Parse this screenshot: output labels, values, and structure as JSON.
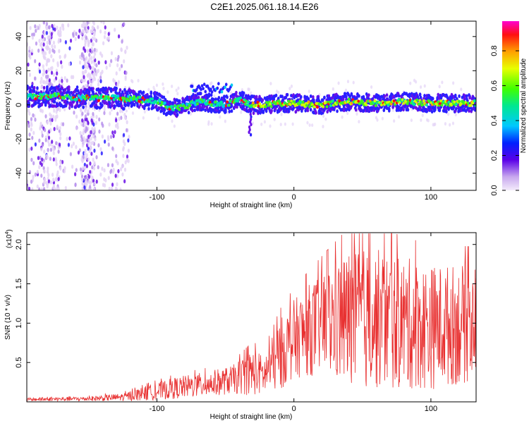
{
  "title": "C2E1.2025.061.18.14.E26",
  "chart_data": [
    {
      "type": "heatmap",
      "title": "C2E1.2025.061.18.14.E26",
      "xlabel": "Height of straight line (km)",
      "ylabel": "Frequency (Hz)",
      "xlim": [
        -195,
        133
      ],
      "ylim": [
        -50,
        49
      ],
      "xticks": [
        -100,
        0,
        100
      ],
      "yticks": [
        -40,
        -20,
        0,
        20,
        40
      ],
      "colorbar": {
        "label": "Normalized spectral amplitude",
        "range": [
          0,
          0.97
        ],
        "ticks": [
          0.0,
          0.2,
          0.4,
          0.6,
          0.8
        ]
      },
      "ridge": [
        {
          "x": -190,
          "f": 5
        },
        {
          "x": -170,
          "f": 5
        },
        {
          "x": -150,
          "f": 4
        },
        {
          "x": -130,
          "f": 4
        },
        {
          "x": -110,
          "f": 3
        },
        {
          "x": -100,
          "f": 2
        },
        {
          "x": -90,
          "f": -2
        },
        {
          "x": -80,
          "f": -1
        },
        {
          "x": -70,
          "f": 2
        },
        {
          "x": -60,
          "f": 1
        },
        {
          "x": -50,
          "f": 0
        },
        {
          "x": -40,
          "f": 3
        },
        {
          "x": -30,
          "f": 0
        },
        {
          "x": -20,
          "f": 0
        },
        {
          "x": -10,
          "f": 1
        },
        {
          "x": 0,
          "f": 1
        },
        {
          "x": 20,
          "f": 0
        },
        {
          "x": 40,
          "f": 2
        },
        {
          "x": 60,
          "f": 1
        },
        {
          "x": 80,
          "f": 2
        },
        {
          "x": 100,
          "f": 1
        },
        {
          "x": 130,
          "f": 1
        }
      ]
    },
    {
      "type": "line",
      "xlabel": "Height of straight line (km)",
      "ylabel": "SNR (10 * v/v)",
      "y_scale_label": "(x10",
      "y_scale_exp": "4",
      "y_scale_close": ")",
      "xlim": [
        -195,
        133
      ],
      "ylim": [
        0,
        2.15
      ],
      "xticks": [
        -100,
        0,
        100
      ],
      "yticks": [
        0.5,
        1.0,
        1.5,
        2.0
      ],
      "ytick_labels": [
        "0.5",
        "1.0",
        "1.5",
        "2.0"
      ],
      "series": [
        {
          "color": "#e83030",
          "envelope": [
            {
              "x": -195,
              "mean": 0.03,
              "amp": 0.02
            },
            {
              "x": -150,
              "mean": 0.04,
              "amp": 0.03
            },
            {
              "x": -125,
              "mean": 0.06,
              "amp": 0.05
            },
            {
              "x": -105,
              "mean": 0.12,
              "amp": 0.1
            },
            {
              "x": -85,
              "mean": 0.18,
              "amp": 0.14
            },
            {
              "x": -65,
              "mean": 0.22,
              "amp": 0.16
            },
            {
              "x": -45,
              "mean": 0.28,
              "amp": 0.18
            },
            {
              "x": -30,
              "mean": 0.38,
              "amp": 0.3
            },
            {
              "x": -22,
              "mean": 0.34,
              "amp": 0.25
            },
            {
              "x": -10,
              "mean": 0.6,
              "amp": 0.45
            },
            {
              "x": 0,
              "mean": 0.8,
              "amp": 0.5
            },
            {
              "x": 20,
              "mean": 1.0,
              "amp": 0.65
            },
            {
              "x": 40,
              "mean": 1.05,
              "amp": 0.9
            },
            {
              "x": 60,
              "mean": 1.05,
              "amp": 0.9
            },
            {
              "x": 80,
              "mean": 1.0,
              "amp": 0.85
            },
            {
              "x": 100,
              "mean": 0.95,
              "amp": 0.8
            },
            {
              "x": 133,
              "mean": 1.0,
              "amp": 0.75
            }
          ]
        }
      ]
    }
  ]
}
